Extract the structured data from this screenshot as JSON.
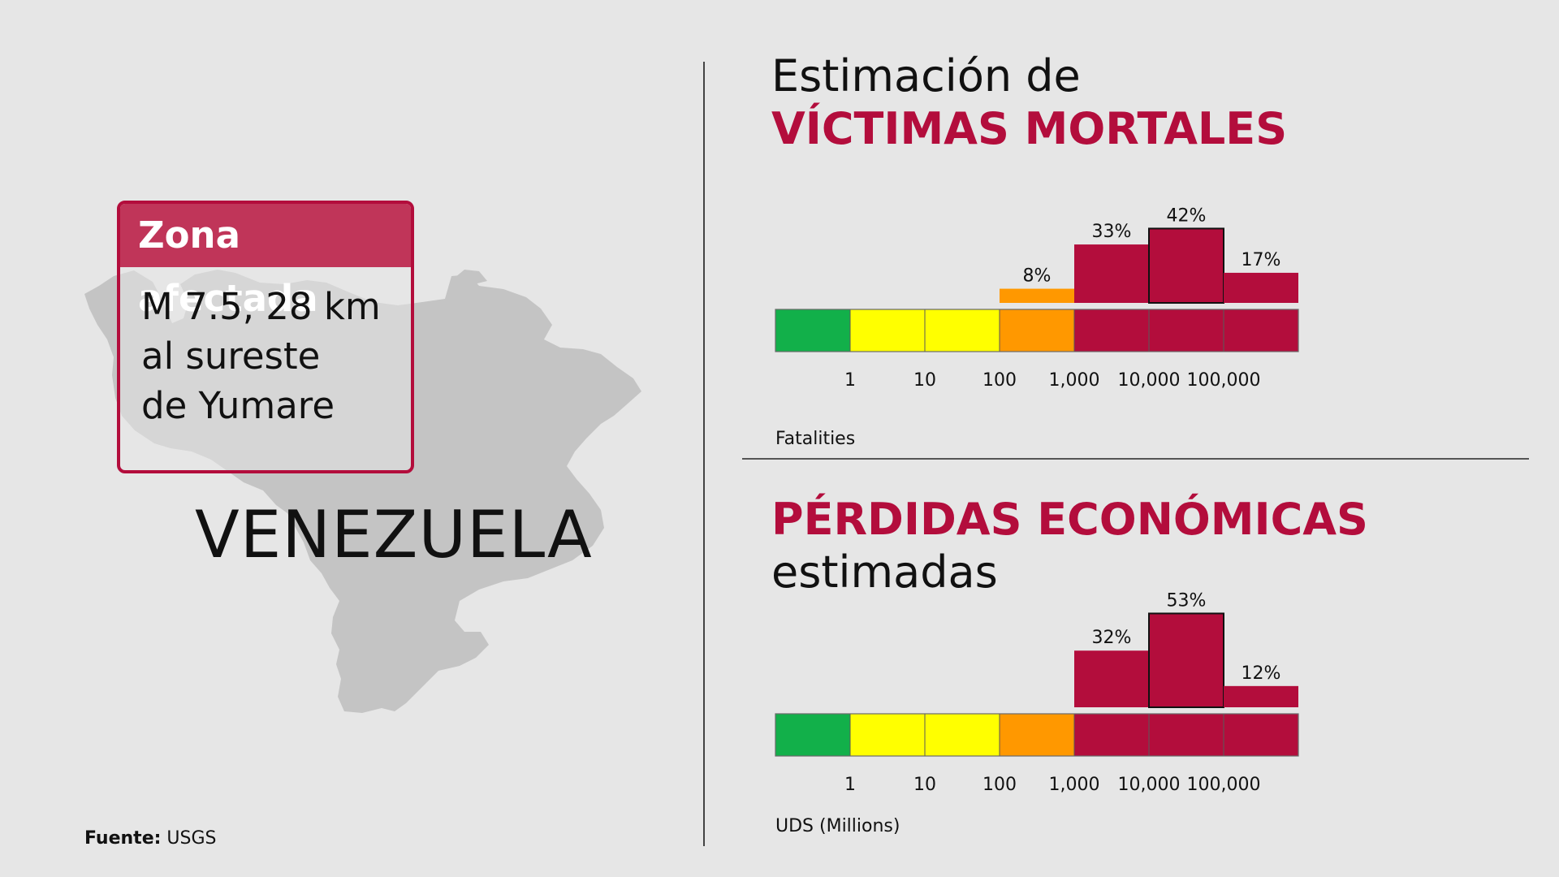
{
  "left": {
    "box_title": "Zona afectada",
    "box_lines": [
      "M 7.5, 28 km",
      "al sureste",
      "de Yumare"
    ],
    "country": "VENEZUELA",
    "source_label": "Fuente:",
    "source_value": "USGS"
  },
  "colors": {
    "accent": "#b30d3c",
    "green": "#12b04a",
    "yellow": "#ffff00",
    "orange": "#ff9800",
    "red": "#b30d3c",
    "map": "#c4c4c4"
  },
  "chart_data": [
    {
      "type": "bar",
      "title_line1": "Estimación de",
      "title_line2": "VÍCTIMAS MORTALES",
      "xlabel": "Fatalities",
      "tick_labels": [
        "1",
        "10",
        "100",
        "1,000",
        "10,000",
        "100,000"
      ],
      "scale_segments": [
        "green",
        "yellow",
        "yellow",
        "orange",
        "red",
        "red",
        "red"
      ],
      "categories": [
        "0-1",
        "1-10",
        "10-100",
        "100-1,000",
        "1,000-10,000",
        "10,000-100,000",
        "100,000+"
      ],
      "values": [
        0,
        0,
        0,
        8,
        33,
        42,
        17
      ],
      "value_labels": [
        "",
        "",
        "",
        "8%",
        "33%",
        "42%",
        "17%"
      ],
      "highlight_index": 5
    },
    {
      "type": "bar",
      "title_line1": "PÉRDIDAS ECONÓMICAS",
      "title_line2": "estimadas",
      "xlabel": "UDS (Millions)",
      "tick_labels": [
        "1",
        "10",
        "100",
        "1,000",
        "10,000",
        "100,000"
      ],
      "scale_segments": [
        "green",
        "yellow",
        "yellow",
        "orange",
        "red",
        "red",
        "red"
      ],
      "categories": [
        "0-1",
        "1-10",
        "10-100",
        "100-1,000",
        "1,000-10,000",
        "10,000-100,000",
        "100,000+"
      ],
      "values": [
        0,
        0,
        0,
        0,
        32,
        53,
        12
      ],
      "value_labels": [
        "",
        "",
        "",
        "",
        "32%",
        "53%",
        "12%"
      ],
      "highlight_index": 5
    }
  ]
}
